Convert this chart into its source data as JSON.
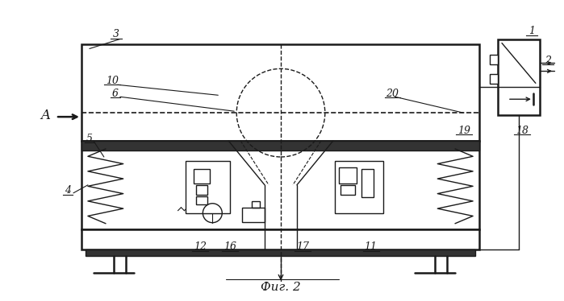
{
  "title": "Фиг. 2",
  "bg_color": "#ffffff",
  "line_color": "#1a1a1a",
  "figsize": [
    6.99,
    3.74
  ],
  "dpi": 100
}
